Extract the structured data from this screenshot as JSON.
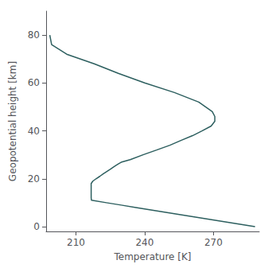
{
  "chart_data": {
    "type": "line",
    "xlabel": "Temperature [K]",
    "ylabel": "Geopotential height [km]",
    "color": "#2d5f5f",
    "x": [
      288.15,
      281.65,
      275.15,
      268.66,
      262.17,
      255.68,
      249.19,
      242.7,
      236.22,
      229.73,
      223.25,
      216.78,
      216.65,
      216.65,
      216.65,
      216.65,
      216.65,
      216.65,
      216.65,
      217.4,
      218.8,
      220.4,
      221.9,
      223.5,
      225.1,
      226.6,
      228.2,
      230.0,
      233.7,
      239.3,
      245.2,
      251.0,
      255.8,
      260.9,
      265.0,
      269.0,
      270.6,
      270.6,
      269.5,
      263.6,
      253.0,
      240.0,
      228.5,
      218.0,
      206.0,
      199.4,
      198.6
    ],
    "values": [
      0,
      1,
      2,
      3,
      4,
      5,
      6,
      7,
      8,
      9,
      10,
      11,
      12,
      13,
      14,
      15,
      16,
      17,
      18,
      19,
      20,
      21,
      22,
      23,
      24,
      25,
      26,
      27,
      28,
      30,
      32,
      34,
      36,
      38,
      40,
      42,
      44,
      46,
      48,
      52,
      56,
      60,
      64,
      68,
      72,
      76,
      80
    ],
    "xlim": [
      197,
      290
    ],
    "ylim": [
      -2,
      90
    ],
    "xticks": [
      210,
      240,
      270
    ],
    "yticks": [
      0,
      20,
      40,
      60,
      80
    ],
    "grid": false
  }
}
